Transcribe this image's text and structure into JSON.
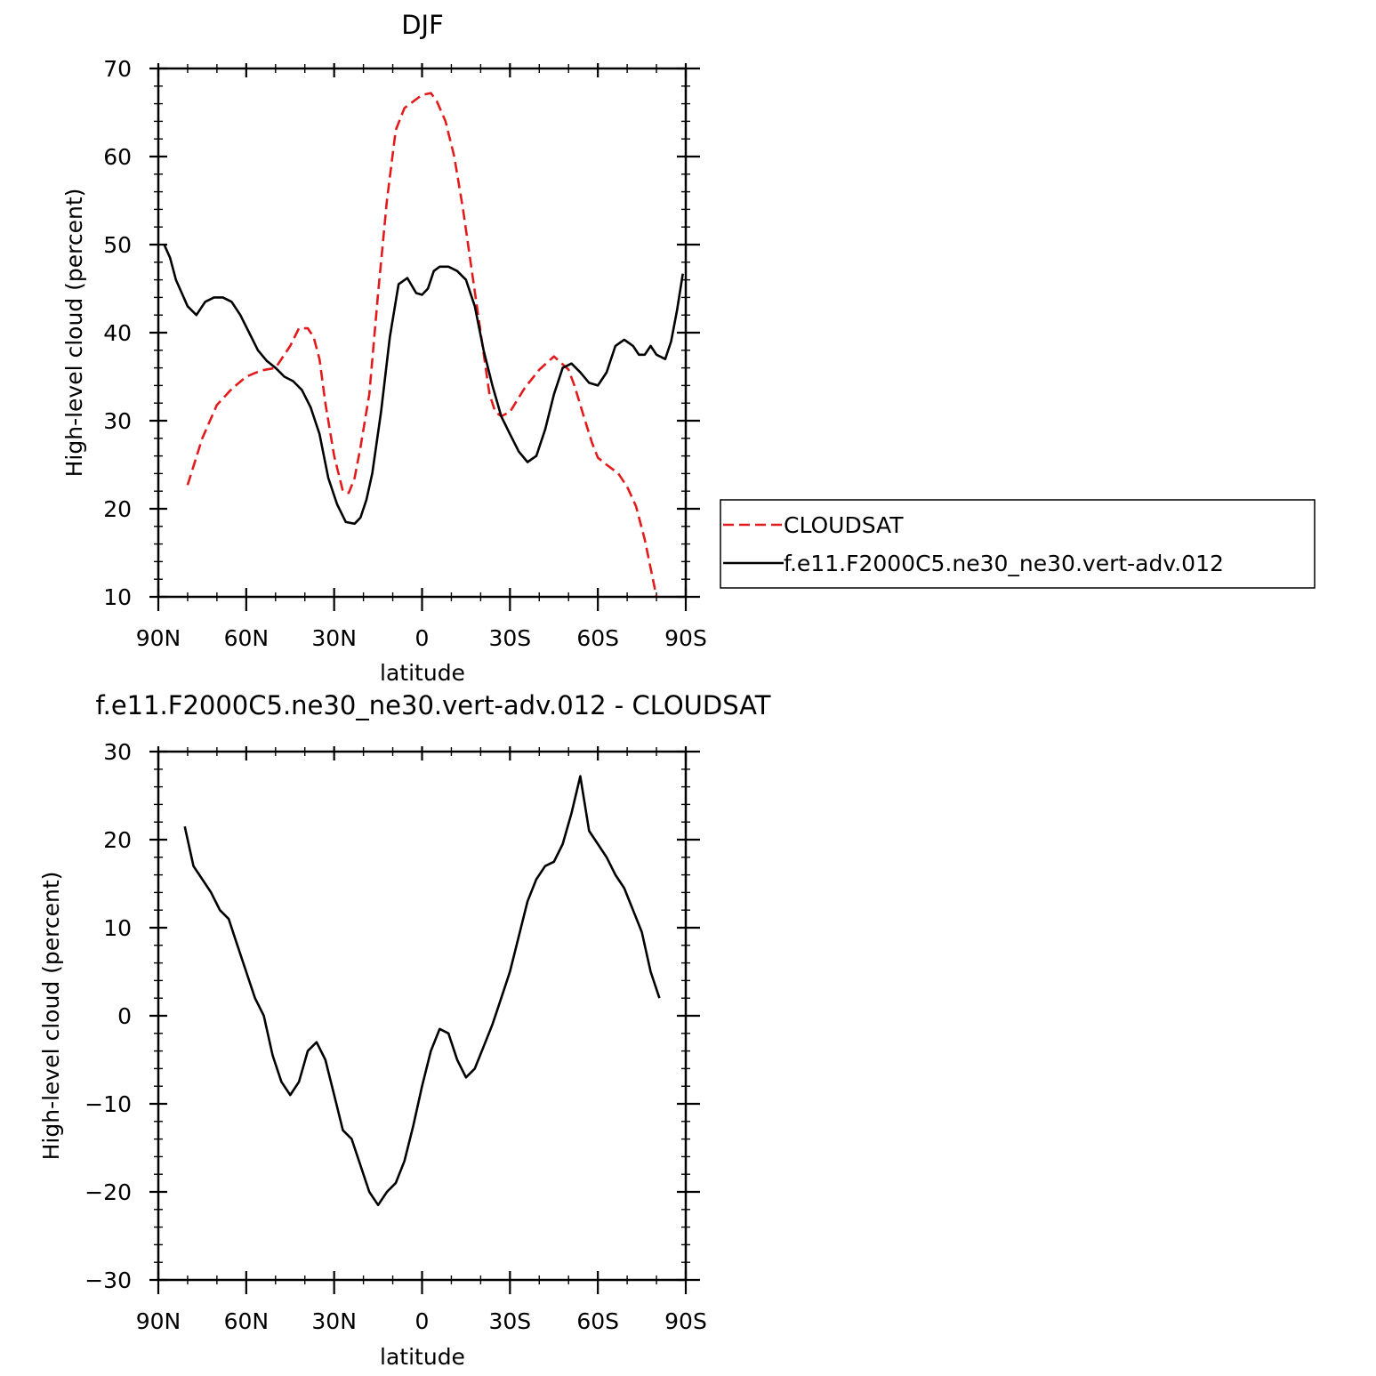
{
  "chart_data": [
    {
      "type": "line",
      "title": "DJF",
      "xlabel": "latitude",
      "ylabel": "High-level cloud (percent)",
      "xlim": [
        90,
        -90
      ],
      "ylim": [
        10,
        70
      ],
      "x_tick_values": [
        90,
        60,
        30,
        0,
        -30,
        -60,
        -90
      ],
      "x_tick_labels": [
        "90N",
        "60N",
        "30N",
        "0",
        "30S",
        "60S",
        "90S"
      ],
      "y_tick_values": [
        10,
        20,
        30,
        40,
        50,
        60,
        70
      ],
      "y_tick_labels": [
        "10",
        "20",
        "30",
        "40",
        "50",
        "60",
        "70"
      ],
      "legend": "right",
      "series": [
        {
          "name": "CLOUDSAT",
          "color": "#e31a1c",
          "dash": "dashed",
          "x": [
            80,
            75,
            70,
            65,
            60,
            55,
            50,
            45,
            42,
            39,
            37,
            35,
            33,
            30,
            27,
            25,
            23,
            21,
            18,
            15,
            12,
            9,
            6,
            4,
            0,
            -3,
            -5,
            -8,
            -11,
            -14,
            -17,
            -20,
            -23,
            -25,
            -27,
            -30,
            -35,
            -40,
            -45,
            -50,
            -52,
            -55,
            -58,
            -60,
            -63,
            -67,
            -70,
            -73,
            -76,
            -80
          ],
          "y": [
            22.7,
            28,
            31.8,
            33.6,
            35,
            35.7,
            36,
            38.5,
            40.5,
            40.5,
            39.5,
            37,
            32,
            26,
            22,
            21.8,
            23.5,
            27,
            33,
            44.5,
            55,
            63,
            65.5,
            66,
            67,
            67.2,
            66.3,
            64,
            60,
            54,
            47,
            40,
            33,
            31,
            30.5,
            31,
            33.7,
            35.8,
            37.3,
            35.8,
            34,
            30.7,
            27.5,
            25.8,
            25,
            24,
            22.5,
            20.3,
            16.5,
            10
          ]
        },
        {
          "name": "f.e11.F2000C5.ne30_ne30.vert-adv.012",
          "color": "#000000",
          "dash": "solid",
          "x": [
            88,
            86,
            84,
            82,
            80,
            77,
            74,
            71,
            68,
            65,
            62,
            59,
            56,
            53,
            50,
            47,
            44,
            41,
            38,
            35,
            32,
            29,
            26,
            23,
            21,
            19,
            17,
            14,
            11,
            8,
            5,
            2,
            0,
            -2,
            -4,
            -6,
            -9,
            -12,
            -15,
            -18,
            -21,
            -24,
            -27,
            -30,
            -33,
            -36,
            -39,
            -42,
            -45,
            -48,
            -51,
            -54,
            -57,
            -60,
            -63,
            -66,
            -69,
            -72,
            -74,
            -76,
            -78,
            -80,
            -83,
            -85,
            -87,
            -89
          ],
          "y": [
            50,
            48.5,
            46,
            44.5,
            43,
            42,
            43.5,
            44,
            44,
            43.5,
            42,
            40,
            38,
            36.8,
            36,
            35,
            34.5,
            33.5,
            31.5,
            28.5,
            23.5,
            20.5,
            18.5,
            18.3,
            19,
            21,
            24,
            31,
            39.5,
            45.5,
            46.2,
            44.5,
            44.3,
            45,
            47,
            47.5,
            47.5,
            47,
            46,
            43,
            38,
            34,
            30.5,
            28.5,
            26.5,
            25.3,
            26,
            29,
            33,
            36,
            36.5,
            35.5,
            34.3,
            34,
            35.5,
            38.5,
            39.2,
            38.5,
            37.5,
            37.5,
            38.5,
            37.5,
            37,
            39,
            42.5,
            46.7
          ]
        }
      ]
    },
    {
      "type": "line",
      "title": "f.e11.F2000C5.ne30_ne30.vert-adv.012 - CLOUDSAT",
      "xlabel": "latitude",
      "ylabel": "High-level cloud (percent)",
      "xlim": [
        90,
        -90
      ],
      "ylim": [
        -30,
        30
      ],
      "x_tick_values": [
        90,
        60,
        30,
        0,
        -30,
        -60,
        -90
      ],
      "x_tick_labels": [
        "90N",
        "60N",
        "30N",
        "0",
        "30S",
        "60S",
        "90S"
      ],
      "y_tick_values": [
        -30,
        -20,
        -10,
        0,
        10,
        20,
        30
      ],
      "y_tick_labels": [
        "−30",
        "−20",
        "−10",
        "0",
        "10",
        "20",
        "30"
      ],
      "series": [
        {
          "color": "#000000",
          "dash": "solid",
          "x": [
            81,
            78,
            75,
            72,
            69,
            66,
            63,
            60,
            57,
            54,
            51,
            48,
            45,
            42,
            39,
            36,
            33,
            30,
            27,
            24,
            21,
            18,
            15,
            12,
            9,
            6,
            3,
            0,
            -3,
            -6,
            -9,
            -12,
            -15,
            -18,
            -21,
            -24,
            -27,
            -30,
            -33,
            -36,
            -39,
            -42,
            -45,
            -48,
            -51,
            -54,
            -57,
            -60,
            -63,
            -66,
            -69,
            -72,
            -75,
            -78,
            -81
          ],
          "y": [
            21.5,
            17,
            15.5,
            14,
            12,
            11,
            8,
            5,
            2,
            0,
            -4.5,
            -7.5,
            -9,
            -7.5,
            -4,
            -3,
            -5,
            -9,
            -13,
            -14,
            -17,
            -20,
            -21.5,
            -20,
            -19,
            -16.5,
            -12.5,
            -8,
            -4,
            -1.5,
            -2,
            -5,
            -7,
            -6,
            -3.5,
            -1,
            2,
            5,
            9,
            13,
            15.5,
            17,
            17.5,
            19.5,
            23,
            27.2,
            21,
            19.5,
            18,
            16,
            14.5,
            12,
            9.5,
            5,
            2
          ]
        }
      ]
    }
  ]
}
